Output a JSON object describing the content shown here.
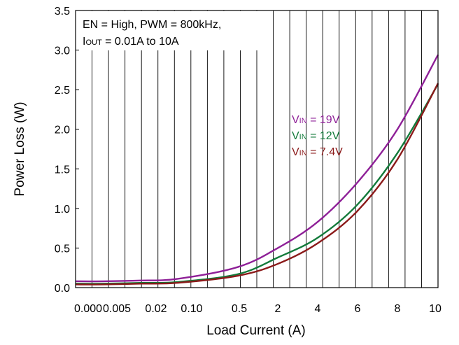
{
  "chart_data": {
    "type": "line",
    "xlabel": "Load Current (A)",
    "ylabel": "Power Loss (W)",
    "ylim": [
      0,
      3.5
    ],
    "grid": "vertical",
    "x_tick_labels": [
      "0.000",
      "0.005",
      "0.02",
      "0.10",
      "0.5",
      "2",
      "4",
      "6",
      "8",
      "10"
    ],
    "y_tick_labels": [
      "0.0",
      "0.5",
      "1.0",
      "1.5",
      "2.0",
      "2.5",
      "3.0",
      "3.5"
    ],
    "annotation": {
      "line1": "EN = High, PWM = 800kHz,",
      "line2_prefix": "I",
      "line2_sub": "OUT",
      "line2_rest": " = 0.01A to 10A"
    },
    "series": [
      {
        "name": "VIN = 19V",
        "label_prefix": "V",
        "label_sub": "IN",
        "label_rest": " = 19V",
        "color": "#8e1f97",
        "x": [
          "0.000",
          "0.005",
          "0.02",
          "0.10",
          "0.5",
          "2",
          "4",
          "6",
          "8",
          "10"
        ],
        "values": [
          0.08,
          0.08,
          0.09,
          0.11,
          0.26,
          0.5,
          0.83,
          1.33,
          2.0,
          2.94
        ]
      },
      {
        "name": "VIN = 12V",
        "label_prefix": "V",
        "label_sub": "IN",
        "label_rest": " = 12V",
        "color": "#127a3a",
        "x": [
          "0.000",
          "0.005",
          "0.02",
          "0.10",
          "0.5",
          "2",
          "4",
          "6",
          "8",
          "10"
        ],
        "values": [
          0.05,
          0.05,
          0.06,
          0.07,
          0.17,
          0.38,
          0.63,
          1.05,
          1.7,
          2.57
        ]
      },
      {
        "name": "VIN = 7.4V",
        "label_prefix": "V",
        "label_sub": "IN",
        "label_rest": " = 7.4V",
        "color": "#8b1a1a",
        "x": [
          "0.000",
          "0.005",
          "0.02",
          "0.10",
          "0.5",
          "2",
          "4",
          "6",
          "8",
          "10"
        ],
        "values": [
          0.04,
          0.04,
          0.05,
          0.06,
          0.15,
          0.3,
          0.56,
          0.97,
          1.62,
          2.58
        ]
      }
    ]
  }
}
